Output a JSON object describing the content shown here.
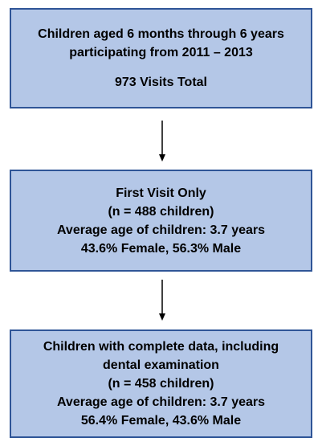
{
  "boxes": [
    {
      "line1": "Children aged 6 months through 6 years",
      "line2": "participating from 2011 – 2013",
      "line3": "973 Visits Total"
    },
    {
      "line1": "First Visit Only",
      "line2": "(n = 488 children)",
      "line3": "Average age of children: 3.7 years",
      "line4": "43.6% Female, 56.3% Male"
    },
    {
      "line1": "Children with complete data, including",
      "line2": "dental examination",
      "line3": "(n = 458 children)",
      "line4": "Average age of children: 3.7 years",
      "line5": "56.4% Female, 43.6% Male"
    }
  ],
  "colors": {
    "box_fill": "#b4c7e7",
    "box_border": "#2f5597",
    "arrow": "#000000"
  }
}
